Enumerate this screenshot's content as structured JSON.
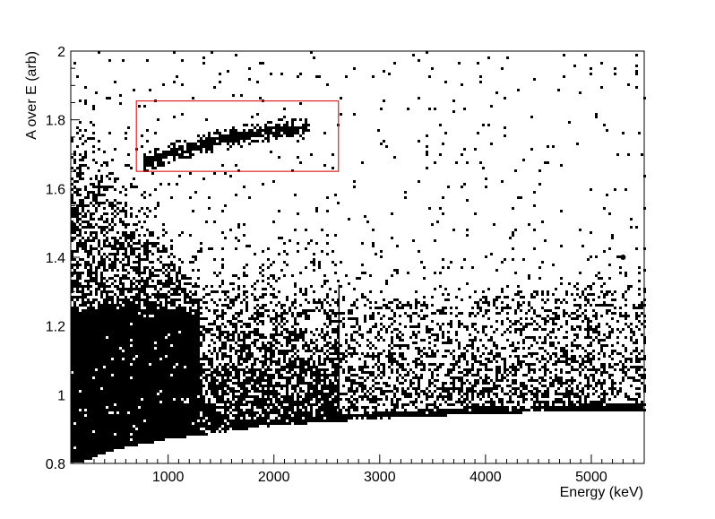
{
  "chart_data": {
    "type": "scatter",
    "title": "",
    "xlabel": "Energy (keV)",
    "ylabel": "A over E (arb)",
    "xlim": [
      80,
      5500
    ],
    "ylim": [
      0.8,
      2.0
    ],
    "x_ticks": [
      {
        "value": 1000,
        "label": "1000"
      },
      {
        "value": 2000,
        "label": "2000"
      },
      {
        "value": 3000,
        "label": "3000"
      },
      {
        "value": 4000,
        "label": "4000"
      },
      {
        "value": 5000,
        "label": "5000"
      }
    ],
    "y_ticks": [
      {
        "value": 0.8,
        "label": "0.8"
      },
      {
        "value": 1.0,
        "label": "1"
      },
      {
        "value": 1.2,
        "label": "1.2"
      },
      {
        "value": 1.4,
        "label": "1.4"
      },
      {
        "value": 1.6,
        "label": "1.6"
      },
      {
        "value": 1.8,
        "label": "1.8"
      },
      {
        "value": 2.0,
        "label": "2"
      }
    ],
    "grid": false,
    "legend": "none",
    "marker_color": "#000000",
    "distribution": {
      "lower_edge": [
        [
          150,
          0.8
        ],
        [
          500,
          0.84
        ],
        [
          1000,
          0.87
        ],
        [
          2000,
          0.91
        ],
        [
          3000,
          0.93
        ],
        [
          4000,
          0.945
        ],
        [
          5500,
          0.955
        ]
      ],
      "dense_core": {
        "energy_max": 1200,
        "ratio_range": [
          0.8,
          1.25
        ]
      },
      "bulk_band": {
        "energy_range": [
          1200,
          5500
        ],
        "ratio_range": [
          0.93,
          1.3
        ]
      },
      "alpha_band": [
        [
          800,
          1.68
        ],
        [
          1200,
          1.72
        ],
        [
          1600,
          1.75
        ],
        [
          2000,
          1.77
        ],
        [
          2300,
          1.775
        ]
      ],
      "edge_energy": 2615,
      "hot_spot": [
        5300,
        1.4
      ]
    },
    "annotations": [
      {
        "type": "rectangle",
        "x_range": [
          700,
          2610
        ],
        "y_range": [
          1.65,
          1.855
        ],
        "color": "#e02020"
      }
    ]
  }
}
